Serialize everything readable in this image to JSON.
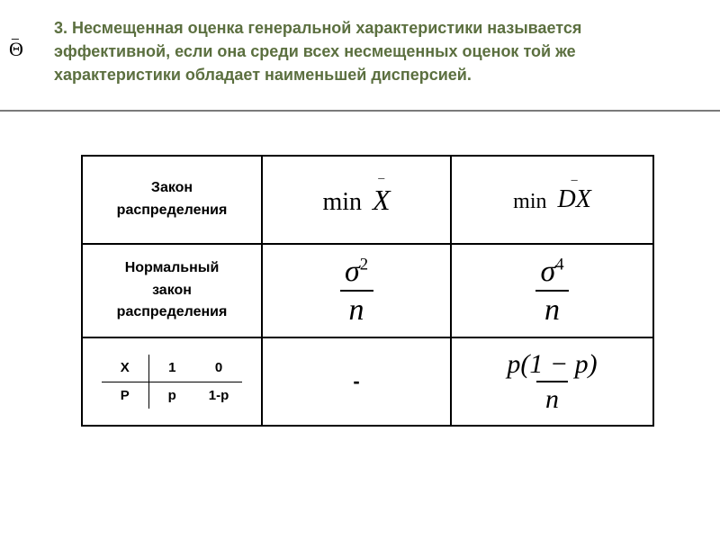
{
  "theta_symbol": "Θ",
  "theta_bar": "_",
  "heading": "3. Несмещенная оценка       генеральной характеристики называется эффективной, если она среди всех несмещенных оценок той же характеристики обладает наименьшей дисперсией.",
  "table": {
    "row1": {
      "label_line1": "Закон",
      "label_line2": "распределения",
      "col2_min": "min",
      "col2_var": "X",
      "col3_min": "min",
      "col3_var": "DX"
    },
    "row2": {
      "label_line1": "Нормальный",
      "label_line2": "закон",
      "label_line3": "распределения",
      "col2_sigma": "σ",
      "col2_exp": "2",
      "col2_n": "n",
      "col3_sigma": "σ",
      "col3_exp": "4",
      "col3_n": "n"
    },
    "row3": {
      "mini": {
        "h1": "X",
        "h2": "1",
        "h3": "0",
        "r1": "P",
        "r2": "p",
        "r3": "1-p"
      },
      "col2_dash": "-",
      "col3_num": "p(1 − p)",
      "col3_den": "n"
    }
  },
  "colors": {
    "heading": "#5b6f3f",
    "rule": "#7a7a7a",
    "text": "#000000",
    "bg": "#ffffff"
  },
  "font_sizes": {
    "heading_pt": 14,
    "label_pt": 12,
    "math_pt": 21
  }
}
